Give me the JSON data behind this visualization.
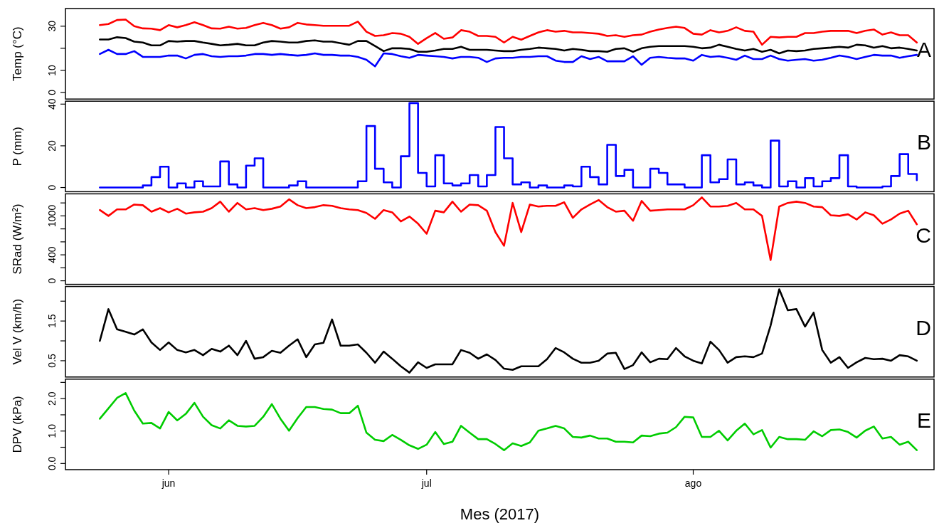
{
  "chart_data": [
    {
      "type": "line",
      "ylabel": "Temp (°C)",
      "annotations": [
        "A"
      ],
      "xlim": [
        "2017-05-20",
        "2017-08-29"
      ],
      "ylim": [
        -3,
        38
      ],
      "yticks": [
        0,
        10,
        {
          "value": 20,
          "label": null
        },
        30
      ],
      "tick_labels": "y",
      "x": [
        "2017-05-24",
        "2017-05-25",
        "2017-05-26",
        "2017-05-27",
        "2017-05-28",
        "2017-05-29",
        "2017-05-30",
        "2017-05-31",
        "2017-06-01",
        "2017-06-02",
        "2017-06-03",
        "2017-06-04",
        "2017-06-05",
        "2017-06-06",
        "2017-06-07",
        "2017-06-08",
        "2017-06-09",
        "2017-06-10",
        "2017-06-11",
        "2017-06-12",
        "2017-06-13",
        "2017-06-14",
        "2017-06-15",
        "2017-06-16",
        "2017-06-17",
        "2017-06-18",
        "2017-06-19",
        "2017-06-20",
        "2017-06-21",
        "2017-06-22",
        "2017-06-23",
        "2017-06-24",
        "2017-06-25",
        "2017-06-26",
        "2017-06-27",
        "2017-06-28",
        "2017-06-29",
        "2017-06-30",
        "2017-07-01",
        "2017-07-02",
        "2017-07-03",
        "2017-07-04",
        "2017-07-05",
        "2017-07-06",
        "2017-07-07",
        "2017-07-08",
        "2017-07-09",
        "2017-07-10",
        "2017-07-11",
        "2017-07-12",
        "2017-07-13",
        "2017-07-14",
        "2017-07-15",
        "2017-07-16",
        "2017-07-17",
        "2017-07-18",
        "2017-07-19",
        "2017-07-20",
        "2017-07-21",
        "2017-07-22",
        "2017-07-23",
        "2017-07-24",
        "2017-07-25",
        "2017-07-26",
        "2017-07-27",
        "2017-07-28",
        "2017-07-29",
        "2017-07-30",
        "2017-07-31",
        "2017-08-01",
        "2017-08-02",
        "2017-08-03",
        "2017-08-04",
        "2017-08-05",
        "2017-08-06",
        "2017-08-07",
        "2017-08-08",
        "2017-08-09",
        "2017-08-10",
        "2017-08-11",
        "2017-08-12",
        "2017-08-13",
        "2017-08-14",
        "2017-08-15",
        "2017-08-16",
        "2017-08-17",
        "2017-08-18",
        "2017-08-19",
        "2017-08-20",
        "2017-08-21",
        "2017-08-22",
        "2017-08-23",
        "2017-08-24",
        "2017-08-25",
        "2017-08-26",
        "2017-08-27"
      ],
      "series": [
        {
          "color": "#ff0000",
          "values": [
            30.5,
            31,
            32.8,
            33,
            30,
            29,
            28.9,
            28.2,
            30.5,
            29.5,
            30.5,
            31.8,
            30.5,
            29,
            28.9,
            29.8,
            28.9,
            29.2,
            30.5,
            31.5,
            30.5,
            28.9,
            29.5,
            31.5,
            30.8,
            30.5,
            30.2,
            30.2,
            30.2,
            30.2,
            32.1,
            27.5,
            25.6,
            25.9,
            26.9,
            26.6,
            25.2,
            22,
            24.6,
            26.9,
            24.3,
            24.9,
            28.2,
            27.5,
            25.6,
            25.6,
            25.2,
            22.6,
            25.2,
            23.9,
            25.6,
            27.2,
            28.2,
            27.5,
            27.9,
            27.2,
            27.2,
            26.9,
            26.6,
            25.6,
            25.9,
            25.2,
            25.9,
            26.2,
            27.5,
            28.5,
            29.2,
            29.8,
            29.2,
            26.6,
            26.2,
            28.2,
            27.2,
            27.9,
            29.5,
            27.9,
            27.5,
            21.6,
            25.2,
            24.9,
            25.2,
            25.2,
            26.9,
            26.9,
            27.5,
            27.9,
            27.9,
            27.9,
            26.9,
            27.9,
            28.5,
            26.2,
            27.2,
            25.9,
            25.9,
            22.6
          ]
        },
        {
          "color": "#000000",
          "values": [
            24,
            24,
            25,
            24.6,
            23,
            22.6,
            21.3,
            21.3,
            23.3,
            23,
            23.3,
            23.3,
            22.6,
            22,
            21.3,
            21.6,
            22,
            21.3,
            21.3,
            22.6,
            23.3,
            23,
            22.6,
            22.6,
            23.3,
            23.6,
            23,
            23,
            22.3,
            21.6,
            23.3,
            23.3,
            21,
            18.7,
            20,
            20,
            19.7,
            18.4,
            18.4,
            19,
            19.7,
            19.7,
            20.7,
            19.3,
            19.3,
            19.3,
            19,
            18.7,
            18.7,
            19.3,
            19.7,
            20.3,
            20,
            19.7,
            19,
            19.7,
            19.3,
            18.7,
            18.7,
            18.4,
            19.7,
            20,
            18.4,
            20,
            20.7,
            21,
            21,
            21,
            21,
            20.7,
            20,
            20.3,
            21.6,
            20.7,
            19.7,
            19,
            19.7,
            18.4,
            19.3,
            17.7,
            19,
            18.7,
            19,
            19.7,
            20,
            20.3,
            20.7,
            20.3,
            21.6,
            21.3,
            20.3,
            21,
            20,
            20.3,
            19.7,
            19
          ]
        },
        {
          "color": "#0000ff",
          "values": [
            17.4,
            19.3,
            17.4,
            17.4,
            18.7,
            16.1,
            16.1,
            16.1,
            16.7,
            16.7,
            15.4,
            17,
            17.4,
            16.4,
            16.1,
            16.4,
            16.4,
            16.7,
            17.4,
            17.4,
            17,
            17.4,
            17,
            16.7,
            17,
            17.7,
            17,
            17,
            16.7,
            16.7,
            16.1,
            14.8,
            11.8,
            17.7,
            17.4,
            16.4,
            15.7,
            17,
            16.7,
            16.4,
            16.1,
            15.4,
            16.1,
            16.1,
            15.7,
            13.8,
            15.4,
            15.7,
            15.7,
            16.1,
            16.1,
            16.4,
            16.4,
            14.4,
            13.8,
            13.8,
            16.4,
            15.1,
            16.1,
            14.1,
            14.1,
            14.1,
            16.4,
            12.5,
            15.7,
            16.1,
            15.7,
            15.4,
            15.4,
            14.4,
            17,
            16.1,
            16.4,
            15.7,
            14.8,
            16.7,
            15.1,
            15.1,
            16.7,
            15.1,
            14.4,
            14.8,
            15.1,
            14.4,
            14.8,
            15.7,
            16.7,
            16.1,
            15.1,
            16.1,
            17,
            16.7,
            16.7,
            15.7,
            16.4,
            17
          ]
        }
      ]
    },
    {
      "type": "step",
      "ylabel": "P (mm)",
      "annotations": [
        "B"
      ],
      "xlim": [
        "2017-05-20",
        "2017-08-29"
      ],
      "ylim": [
        -2,
        41.4
      ],
      "yticks": [
        0,
        20,
        40
      ],
      "tick_labels": "y",
      "x": [
        "2017-05-24",
        "2017-05-25",
        "2017-05-26",
        "2017-05-27",
        "2017-05-28",
        "2017-05-29",
        "2017-05-30",
        "2017-05-31",
        "2017-06-01",
        "2017-06-02",
        "2017-06-03",
        "2017-06-04",
        "2017-06-05",
        "2017-06-06",
        "2017-06-07",
        "2017-06-08",
        "2017-06-09",
        "2017-06-10",
        "2017-06-11",
        "2017-06-12",
        "2017-06-13",
        "2017-06-14",
        "2017-06-15",
        "2017-06-16",
        "2017-06-17",
        "2017-06-18",
        "2017-06-19",
        "2017-06-20",
        "2017-06-21",
        "2017-06-22",
        "2017-06-23",
        "2017-06-24",
        "2017-06-25",
        "2017-06-26",
        "2017-06-27",
        "2017-06-28",
        "2017-06-29",
        "2017-06-30",
        "2017-07-01",
        "2017-07-02",
        "2017-07-03",
        "2017-07-04",
        "2017-07-05",
        "2017-07-06",
        "2017-07-07",
        "2017-07-08",
        "2017-07-09",
        "2017-07-10",
        "2017-07-11",
        "2017-07-12",
        "2017-07-13",
        "2017-07-14",
        "2017-07-15",
        "2017-07-16",
        "2017-07-17",
        "2017-07-18",
        "2017-07-19",
        "2017-07-20",
        "2017-07-21",
        "2017-07-22",
        "2017-07-23",
        "2017-07-24",
        "2017-07-25",
        "2017-07-26",
        "2017-07-27",
        "2017-07-28",
        "2017-07-29",
        "2017-07-30",
        "2017-07-31",
        "2017-08-01",
        "2017-08-02",
        "2017-08-03",
        "2017-08-04",
        "2017-08-05",
        "2017-08-06",
        "2017-08-07",
        "2017-08-08",
        "2017-08-09",
        "2017-08-10",
        "2017-08-11",
        "2017-08-12",
        "2017-08-13",
        "2017-08-14",
        "2017-08-15",
        "2017-08-16",
        "2017-08-17",
        "2017-08-18",
        "2017-08-19",
        "2017-08-20",
        "2017-08-21",
        "2017-08-22",
        "2017-08-23",
        "2017-08-24",
        "2017-08-25",
        "2017-08-26",
        "2017-08-27"
      ],
      "series": [
        {
          "color": "#0000ff",
          "values": [
            0,
            0,
            0,
            0,
            0,
            1,
            5,
            10,
            0,
            2,
            0,
            3,
            0.5,
            0.5,
            12.5,
            1.5,
            0,
            10.5,
            14,
            0,
            0,
            0,
            1,
            3,
            0,
            0,
            0,
            0,
            0,
            0,
            3,
            29.5,
            9,
            2.5,
            0,
            15,
            40.5,
            7,
            0.5,
            15.5,
            2,
            1,
            2,
            6,
            0.5,
            6,
            29,
            14,
            1.5,
            2.5,
            0,
            1,
            0,
            0,
            1,
            0.5,
            10,
            5,
            1.5,
            20.5,
            5.5,
            8.5,
            0,
            0,
            9,
            7,
            1.5,
            1.5,
            0,
            0,
            15.5,
            2.5,
            4,
            13.5,
            1.5,
            2.5,
            1,
            0,
            22.5,
            0.5,
            3,
            0,
            4.5,
            0.5,
            3,
            4.5,
            15.5,
            0.5,
            0,
            0,
            0,
            0.5,
            5.5,
            16,
            6.5,
            3.5
          ]
        }
      ]
    },
    {
      "type": "line",
      "ylabel": "SRad (W/m²)",
      "annotations": [
        "C"
      ],
      "xlim": [
        "2017-05-20",
        "2017-08-29"
      ],
      "ylim": [
        -55,
        1340
      ],
      "yticks": [
        0,
        {
          "value": 200,
          "label": null
        },
        400,
        {
          "value": 600,
          "label": null
        },
        {
          "value": 800,
          "label": null
        },
        1000,
        {
          "value": 1200,
          "label": null
        }
      ],
      "tick_labels": "y",
      "x": [
        "2017-05-24",
        "2017-05-25",
        "2017-05-26",
        "2017-05-27",
        "2017-05-28",
        "2017-05-29",
        "2017-05-30",
        "2017-05-31",
        "2017-06-01",
        "2017-06-02",
        "2017-06-03",
        "2017-06-04",
        "2017-06-05",
        "2017-06-06",
        "2017-06-07",
        "2017-06-08",
        "2017-06-09",
        "2017-06-10",
        "2017-06-11",
        "2017-06-12",
        "2017-06-13",
        "2017-06-14",
        "2017-06-15",
        "2017-06-16",
        "2017-06-17",
        "2017-06-18",
        "2017-06-19",
        "2017-06-20",
        "2017-06-21",
        "2017-06-22",
        "2017-06-23",
        "2017-06-24",
        "2017-06-25",
        "2017-06-26",
        "2017-06-27",
        "2017-06-28",
        "2017-06-29",
        "2017-06-30",
        "2017-07-01",
        "2017-07-02",
        "2017-07-03",
        "2017-07-04",
        "2017-07-05",
        "2017-07-06",
        "2017-07-07",
        "2017-07-08",
        "2017-07-09",
        "2017-07-10",
        "2017-07-11",
        "2017-07-12",
        "2017-07-13",
        "2017-07-14",
        "2017-07-15",
        "2017-07-16",
        "2017-07-17",
        "2017-07-18",
        "2017-07-19",
        "2017-07-20",
        "2017-07-21",
        "2017-07-22",
        "2017-07-23",
        "2017-07-24",
        "2017-07-25",
        "2017-07-26",
        "2017-07-27",
        "2017-07-28",
        "2017-07-29",
        "2017-07-30",
        "2017-07-31",
        "2017-08-01",
        "2017-08-02",
        "2017-08-03",
        "2017-08-04",
        "2017-08-05",
        "2017-08-06",
        "2017-08-07",
        "2017-08-08",
        "2017-08-09",
        "2017-08-10",
        "2017-08-11",
        "2017-08-12",
        "2017-08-13",
        "2017-08-14",
        "2017-08-15",
        "2017-08-16",
        "2017-08-17",
        "2017-08-18",
        "2017-08-19",
        "2017-08-20",
        "2017-08-21",
        "2017-08-22",
        "2017-08-23",
        "2017-08-24",
        "2017-08-25",
        "2017-08-26",
        "2017-08-27"
      ],
      "series": [
        {
          "color": "#ff0000",
          "values": [
            1090,
            1000,
            1100,
            1100,
            1175,
            1165,
            1065,
            1120,
            1055,
            1110,
            1035,
            1055,
            1065,
            1120,
            1220,
            1065,
            1200,
            1100,
            1120,
            1090,
            1110,
            1145,
            1255,
            1165,
            1120,
            1135,
            1165,
            1155,
            1120,
            1100,
            1090,
            1045,
            955,
            1090,
            1055,
            915,
            990,
            880,
            725,
            1080,
            1055,
            1220,
            1065,
            1175,
            1165,
            1080,
            750,
            540,
            1200,
            750,
            1175,
            1145,
            1155,
            1155,
            1210,
            970,
            1100,
            1175,
            1245,
            1135,
            1065,
            1080,
            925,
            1230,
            1080,
            1090,
            1100,
            1100,
            1100,
            1165,
            1285,
            1145,
            1145,
            1155,
            1200,
            1100,
            1100,
            1000,
            320,
            1145,
            1200,
            1220,
            1200,
            1145,
            1135,
            1010,
            1000,
            1025,
            945,
            1055,
            1010,
            880,
            945,
            1035,
            1080,
            870
          ]
        }
      ]
    },
    {
      "type": "line",
      "ylabel": "Vel V (km/h)",
      "annotations": [
        "D"
      ],
      "xlim": [
        "2017-05-20",
        "2017-08-29"
      ],
      "ylim": [
        0.09,
        2.37
      ],
      "yticks": [
        0.5,
        {
          "value": 1,
          "label": null
        },
        1.5,
        {
          "value": 2,
          "label": null
        }
      ],
      "tick_labels": "y",
      "x": [
        "2017-05-24",
        "2017-05-25",
        "2017-05-26",
        "2017-05-27",
        "2017-05-28",
        "2017-05-29",
        "2017-05-30",
        "2017-05-31",
        "2017-06-01",
        "2017-06-02",
        "2017-06-03",
        "2017-06-04",
        "2017-06-05",
        "2017-06-06",
        "2017-06-07",
        "2017-06-08",
        "2017-06-09",
        "2017-06-10",
        "2017-06-11",
        "2017-06-12",
        "2017-06-13",
        "2017-06-14",
        "2017-06-15",
        "2017-06-16",
        "2017-06-17",
        "2017-06-18",
        "2017-06-19",
        "2017-06-20",
        "2017-06-21",
        "2017-06-22",
        "2017-06-23",
        "2017-06-24",
        "2017-06-25",
        "2017-06-26",
        "2017-06-27",
        "2017-06-28",
        "2017-06-29",
        "2017-06-30",
        "2017-07-01",
        "2017-07-02",
        "2017-07-03",
        "2017-07-04",
        "2017-07-05",
        "2017-07-06",
        "2017-07-07",
        "2017-07-08",
        "2017-07-09",
        "2017-07-10",
        "2017-07-11",
        "2017-07-12",
        "2017-07-13",
        "2017-07-14",
        "2017-07-15",
        "2017-07-16",
        "2017-07-17",
        "2017-07-18",
        "2017-07-19",
        "2017-07-20",
        "2017-07-21",
        "2017-07-22",
        "2017-07-23",
        "2017-07-24",
        "2017-07-25",
        "2017-07-26",
        "2017-07-27",
        "2017-07-28",
        "2017-07-29",
        "2017-07-30",
        "2017-07-31",
        "2017-08-01",
        "2017-08-02",
        "2017-08-03",
        "2017-08-04",
        "2017-08-05",
        "2017-08-06",
        "2017-08-07",
        "2017-08-08",
        "2017-08-09",
        "2017-08-10",
        "2017-08-11",
        "2017-08-12",
        "2017-08-13",
        "2017-08-14",
        "2017-08-15",
        "2017-08-16",
        "2017-08-17",
        "2017-08-18",
        "2017-08-19",
        "2017-08-20",
        "2017-08-21",
        "2017-08-22",
        "2017-08-23",
        "2017-08-24",
        "2017-08-25",
        "2017-08-26",
        "2017-08-27"
      ],
      "series": [
        {
          "color": "#000000",
          "values": [
            1,
            1.8,
            1.29,
            1.23,
            1.16,
            1.29,
            0.96,
            0.77,
            0.96,
            0.77,
            0.71,
            0.77,
            0.64,
            0.8,
            0.73,
            0.88,
            0.64,
            1,
            0.55,
            0.59,
            0.75,
            0.7,
            0.88,
            1.04,
            0.59,
            0.91,
            0.95,
            1.54,
            0.88,
            0.88,
            0.91,
            0.7,
            0.45,
            0.73,
            0.55,
            0.36,
            0.2,
            0.46,
            0.32,
            0.41,
            0.41,
            0.41,
            0.77,
            0.7,
            0.55,
            0.66,
            0.52,
            0.3,
            0.27,
            0.36,
            0.36,
            0.36,
            0.54,
            0.82,
            0.71,
            0.55,
            0.45,
            0.45,
            0.5,
            0.68,
            0.7,
            0.29,
            0.39,
            0.71,
            0.46,
            0.55,
            0.54,
            0.82,
            0.61,
            0.5,
            0.43,
            0.98,
            0.77,
            0.45,
            0.59,
            0.61,
            0.59,
            0.68,
            1.39,
            2.3,
            1.77,
            1.8,
            1.36,
            1.71,
            0.77,
            0.45,
            0.59,
            0.32,
            0.46,
            0.57,
            0.54,
            0.55,
            0.5,
            0.64,
            0.61,
            0.5
          ]
        }
      ]
    },
    {
      "type": "line",
      "ylabel": "DPV (kPa)",
      "xlabel": "Mes (2017)",
      "annotations": [
        "E"
      ],
      "xlim": [
        "2017-05-20",
        "2017-08-29"
      ],
      "xticks": [
        {
          "value": "2017-06-01",
          "label": "jun"
        },
        {
          "value": "2017-07-01",
          "label": "jul"
        },
        {
          "value": "2017-08-01",
          "label": "ago"
        }
      ],
      "ylim": [
        -0.19,
        2.6
      ],
      "yticks": [
        {
          "value": 0,
          "label": "0.0"
        },
        {
          "value": 0.5,
          "label": null
        },
        {
          "value": 1,
          "label": "1.0"
        },
        {
          "value": 1.5,
          "label": null
        },
        {
          "value": 2,
          "label": "2.0"
        },
        {
          "value": 2.5,
          "label": null
        }
      ],
      "x": [
        "2017-05-24",
        "2017-05-25",
        "2017-05-26",
        "2017-05-27",
        "2017-05-28",
        "2017-05-29",
        "2017-05-30",
        "2017-05-31",
        "2017-06-01",
        "2017-06-02",
        "2017-06-03",
        "2017-06-04",
        "2017-06-05",
        "2017-06-06",
        "2017-06-07",
        "2017-06-08",
        "2017-06-09",
        "2017-06-10",
        "2017-06-11",
        "2017-06-12",
        "2017-06-13",
        "2017-06-14",
        "2017-06-15",
        "2017-06-16",
        "2017-06-17",
        "2017-06-18",
        "2017-06-19",
        "2017-06-20",
        "2017-06-21",
        "2017-06-22",
        "2017-06-23",
        "2017-06-24",
        "2017-06-25",
        "2017-06-26",
        "2017-06-27",
        "2017-06-28",
        "2017-06-29",
        "2017-06-30",
        "2017-07-01",
        "2017-07-02",
        "2017-07-03",
        "2017-07-04",
        "2017-07-05",
        "2017-07-06",
        "2017-07-07",
        "2017-07-08",
        "2017-07-09",
        "2017-07-10",
        "2017-07-11",
        "2017-07-12",
        "2017-07-13",
        "2017-07-14",
        "2017-07-15",
        "2017-07-16",
        "2017-07-17",
        "2017-07-18",
        "2017-07-19",
        "2017-07-20",
        "2017-07-21",
        "2017-07-22",
        "2017-07-23",
        "2017-07-24",
        "2017-07-25",
        "2017-07-26",
        "2017-07-27",
        "2017-07-28",
        "2017-07-29",
        "2017-07-30",
        "2017-07-31",
        "2017-08-01",
        "2017-08-02",
        "2017-08-03",
        "2017-08-04",
        "2017-08-05",
        "2017-08-06",
        "2017-08-07",
        "2017-08-08",
        "2017-08-09",
        "2017-08-10",
        "2017-08-11",
        "2017-08-12",
        "2017-08-13",
        "2017-08-14",
        "2017-08-15",
        "2017-08-16",
        "2017-08-17",
        "2017-08-18",
        "2017-08-19",
        "2017-08-20",
        "2017-08-21",
        "2017-08-22",
        "2017-08-23",
        "2017-08-24",
        "2017-08-25",
        "2017-08-26",
        "2017-08-27"
      ],
      "series": [
        {
          "color": "#00cc00",
          "values": [
            1.38,
            1.7,
            2.02,
            2.17,
            1.63,
            1.23,
            1.25,
            1.08,
            1.59,
            1.33,
            1.53,
            1.87,
            1.44,
            1.18,
            1.08,
            1.33,
            1.16,
            1.14,
            1.16,
            1.44,
            1.83,
            1.38,
            1.01,
            1.4,
            1.74,
            1.74,
            1.68,
            1.66,
            1.55,
            1.55,
            1.78,
            0.95,
            0.73,
            0.69,
            0.88,
            0.73,
            0.56,
            0.45,
            0.58,
            0.97,
            0.6,
            0.67,
            1.16,
            0.95,
            0.75,
            0.75,
            0.6,
            0.41,
            0.62,
            0.54,
            0.65,
            1.01,
            1.08,
            1.16,
            1.08,
            0.82,
            0.8,
            0.86,
            0.77,
            0.77,
            0.67,
            0.67,
            0.65,
            0.86,
            0.84,
            0.92,
            0.95,
            1.12,
            1.44,
            1.42,
            0.82,
            0.82,
            1.01,
            0.71,
            1.01,
            1.23,
            0.9,
            1.03,
            0.49,
            0.82,
            0.75,
            0.75,
            0.73,
            0.99,
            0.84,
            1.03,
            1.05,
            0.97,
            0.8,
            1.01,
            1.14,
            0.77,
            0.82,
            0.58,
            0.67,
            0.41
          ]
        }
      ]
    }
  ]
}
